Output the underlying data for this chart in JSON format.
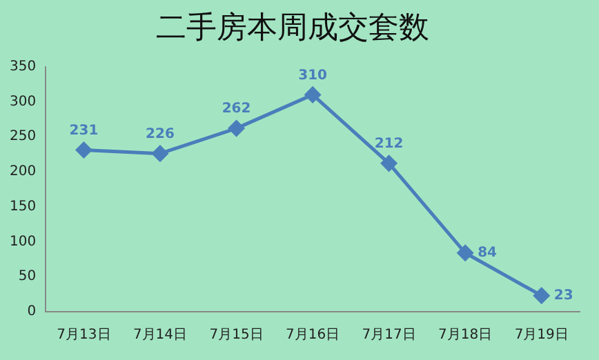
{
  "chart_data": {
    "type": "line",
    "title": "二手房本周成交套数",
    "categories": [
      "7月13日",
      "7月14日",
      "7月15日",
      "7月16日",
      "7月17日",
      "7月18日",
      "7月19日"
    ],
    "series": [
      {
        "color": "#4a7ebb",
        "values": [
          231,
          226,
          262,
          310,
          212,
          84,
          23
        ]
      }
    ],
    "ylim": [
      0,
      350
    ],
    "yticks": [
      0,
      50,
      100,
      150,
      200,
      250,
      300,
      350
    ],
    "grid": false,
    "legend": false,
    "marker": "diamond",
    "data_labels": true
  }
}
